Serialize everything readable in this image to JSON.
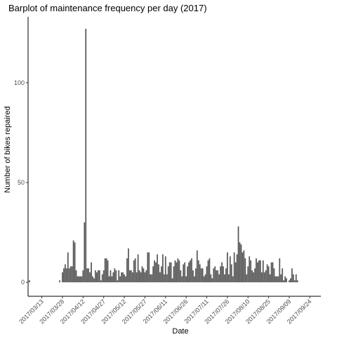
{
  "chart_data": {
    "type": "bar",
    "title": "Barplot of maintenance frequency per day (2017)",
    "xlabel": "Date",
    "ylabel": "Number of bikes repaired",
    "ylim": [
      -7,
      133
    ],
    "xlim": [
      "2017-03-03",
      "2017-10-02"
    ],
    "y_ticks": [
      0,
      50,
      100
    ],
    "x_ticks": [
      {
        "date": "2017-03-13",
        "label": "2017/03/13"
      },
      {
        "date": "2017-03-28",
        "label": "2017/03/28"
      },
      {
        "date": "2017-04-12",
        "label": "2017/04/12"
      },
      {
        "date": "2017-04-27",
        "label": "2017/04/27"
      },
      {
        "date": "2017-05-12",
        "label": "2017/05/12"
      },
      {
        "date": "2017-05-27",
        "label": "2017/05/27"
      },
      {
        "date": "2017-06-11",
        "label": "2017/06/11"
      },
      {
        "date": "2017-06-26",
        "label": "2017/06/26"
      },
      {
        "date": "2017-07-11",
        "label": "2017/07/11"
      },
      {
        "date": "2017-07-26",
        "label": "2017/07/26"
      },
      {
        "date": "2017-08-10",
        "label": "2017/08/10"
      },
      {
        "date": "2017-08-25",
        "label": "2017/08/25"
      },
      {
        "date": "2017-09-09",
        "label": "2017/09/09"
      },
      {
        "date": "2017-09-24",
        "label": "2017/09/24"
      }
    ],
    "grid": false,
    "bar_color": "#595959",
    "start_date": "2017-03-04",
    "values": [
      1,
      0,
      0,
      0,
      0,
      0,
      0,
      0,
      0,
      0,
      0,
      0,
      0,
      0,
      0,
      0,
      0,
      0,
      0,
      0,
      0,
      0,
      1,
      0,
      5,
      7,
      9,
      7,
      15,
      7,
      8,
      8,
      21,
      20,
      6,
      3,
      3,
      3,
      3,
      6,
      30,
      127,
      7,
      7,
      5,
      10,
      3,
      2,
      6,
      5,
      6,
      6,
      1,
      4,
      6,
      12,
      12,
      11,
      3,
      6,
      3,
      5,
      7,
      6,
      1,
      6,
      3,
      5,
      5,
      4,
      3,
      12,
      17,
      6,
      6,
      5,
      11,
      12,
      5,
      14,
      6,
      5,
      8,
      7,
      5,
      6,
      15,
      15,
      4,
      4,
      8,
      11,
      10,
      14,
      9,
      5,
      8,
      14,
      4,
      13,
      4,
      8,
      10,
      10,
      2,
      8,
      11,
      10,
      12,
      11,
      6,
      3,
      9,
      10,
      3,
      8,
      10,
      11,
      12,
      6,
      3,
      7,
      16,
      11,
      9,
      7,
      7,
      3,
      4,
      8,
      11,
      12,
      4,
      2,
      7,
      8,
      6,
      6,
      4,
      8,
      10,
      8,
      4,
      7,
      15,
      4,
      13,
      9,
      3,
      15,
      10,
      14,
      28,
      20,
      19,
      15,
      16,
      12,
      4,
      8,
      13,
      11,
      6,
      5,
      7,
      12,
      10,
      11,
      11,
      5,
      11,
      5,
      6,
      9,
      8,
      4,
      10,
      10,
      7,
      3,
      3,
      3,
      12,
      4,
      7,
      1,
      3,
      2,
      0,
      1,
      2,
      7,
      4,
      1,
      4,
      1
    ]
  }
}
